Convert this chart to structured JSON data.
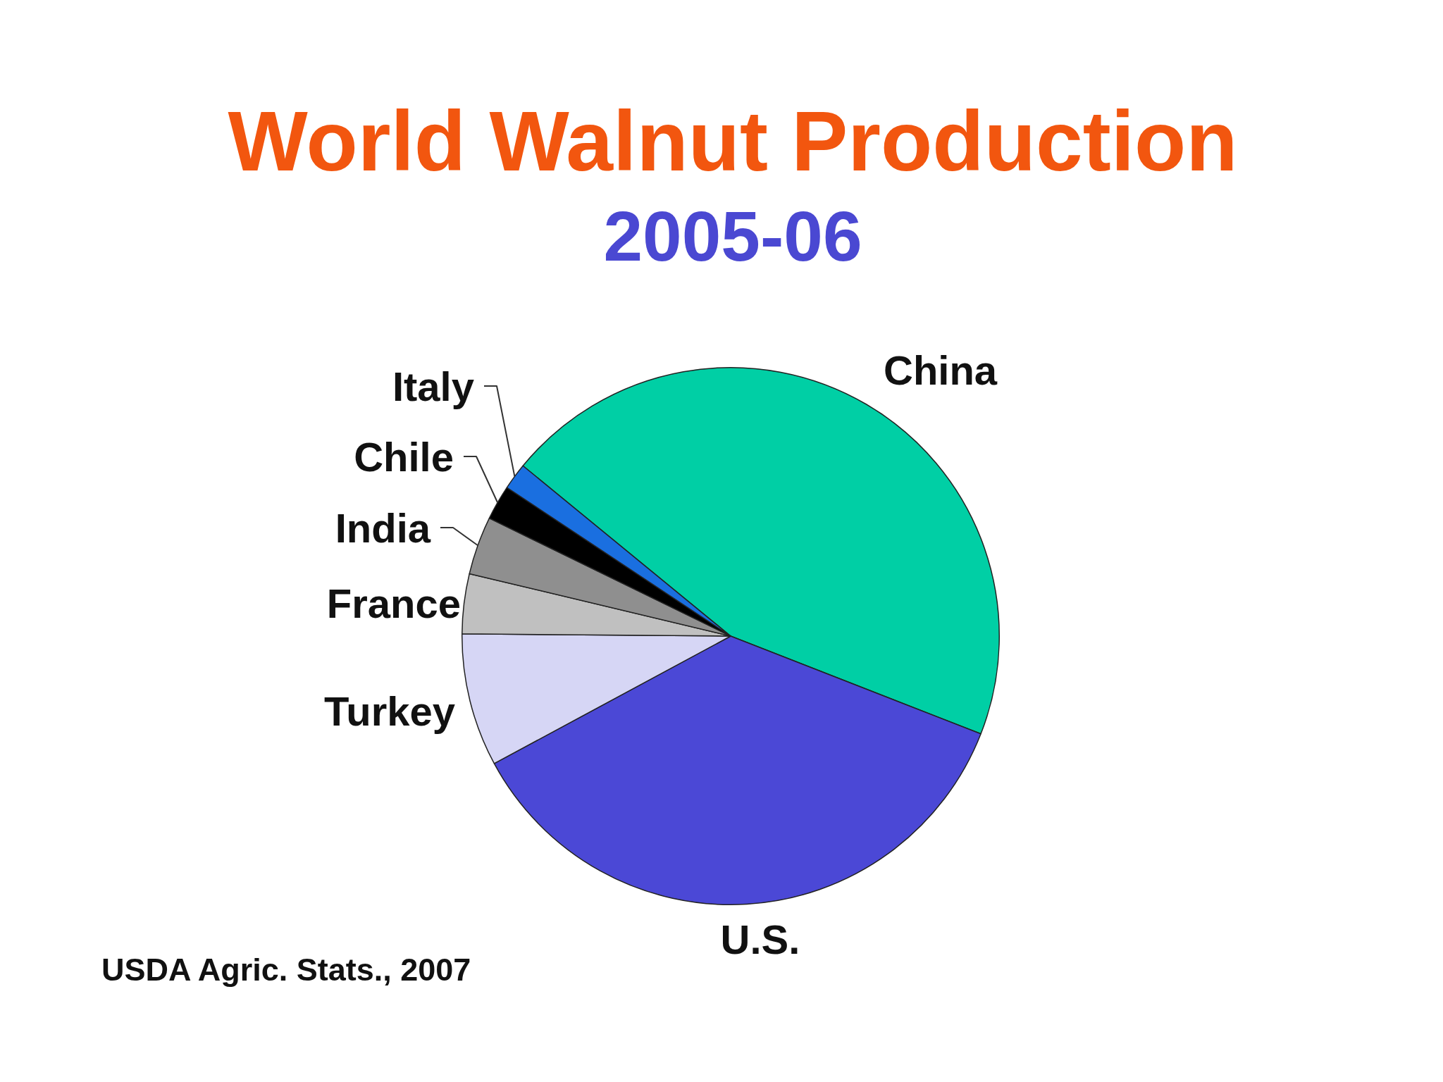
{
  "chart_data": {
    "type": "pie",
    "title": "World Walnut Production",
    "subtitle": "2005-06",
    "categories": [
      "China",
      "U.S.",
      "Turkey",
      "France",
      "India",
      "Chile",
      "Italy"
    ],
    "values": [
      45.0,
      36.2,
      8.0,
      3.6,
      3.5,
      2.1,
      1.6
    ],
    "colors": [
      "#00cfa5",
      "#4b48d6",
      "#d6d6f5",
      "#c0c0c0",
      "#8f8f8f",
      "#000000",
      "#1a6fe0"
    ],
    "annotations": [
      "USDA Agric. Stats., 2007"
    ]
  }
}
